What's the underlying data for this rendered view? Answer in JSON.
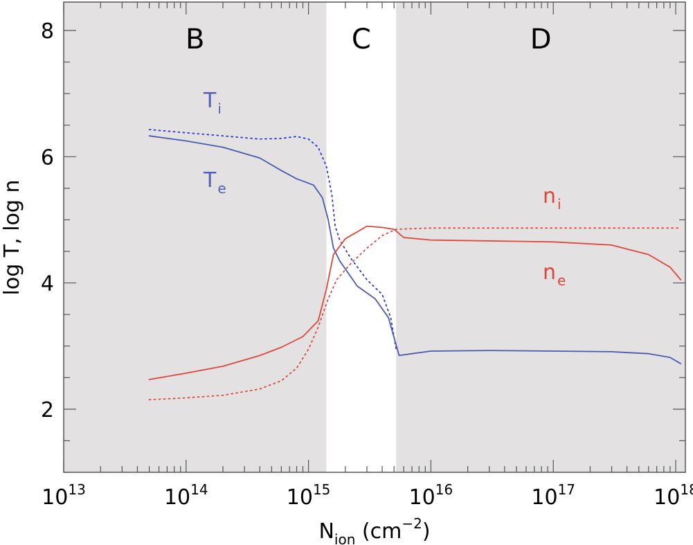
{
  "chart_data": {
    "type": "line",
    "title": "",
    "xlabel": {
      "main": "N",
      "sub": "ion",
      "rest": "  (cm",
      "sup": "−2",
      "close": ")"
    },
    "ylabel": "log T, log n",
    "x_scale": "log",
    "xlim": [
      10000000000000.0,
      1.2e+18
    ],
    "ylim": [
      1,
      8.45
    ],
    "x_ticks": [
      {
        "base": "10",
        "exp": "13",
        "value": 10000000000000.0
      },
      {
        "base": "10",
        "exp": "14",
        "value": 100000000000000.0
      },
      {
        "base": "10",
        "exp": "15",
        "value": 1000000000000000.0
      },
      {
        "base": "10",
        "exp": "16",
        "value": 1e+16
      },
      {
        "base": "10",
        "exp": "17",
        "value": 1e+17
      },
      {
        "base": "10",
        "exp": "18",
        "value": 1e+18
      }
    ],
    "y_ticks": [
      "2",
      "4",
      "6",
      "8"
    ],
    "regions": [
      {
        "label": "B",
        "x0": 10000000000000.0,
        "x1": 1400000000000000.0,
        "shaded": true
      },
      {
        "label": "C",
        "x0": 1400000000000000.0,
        "x1": 5200000000000000.0,
        "shaded": false
      },
      {
        "label": "D",
        "x0": 5200000000000000.0,
        "x1": 1.2e+18,
        "shaded": true
      }
    ],
    "series": [
      {
        "name": "Ti",
        "label_main": "T",
        "label_sub": "i",
        "color": "#2436d9",
        "style": "dotted",
        "points": [
          [
            50000000000000.0,
            6.43
          ],
          [
            100000000000000.0,
            6.38
          ],
          [
            200000000000000.0,
            6.33
          ],
          [
            400000000000000.0,
            6.28
          ],
          [
            600000000000000.0,
            6.29
          ],
          [
            800000000000000.0,
            6.32
          ],
          [
            1000000000000000.0,
            6.28
          ],
          [
            1200000000000000.0,
            6.15
          ],
          [
            1400000000000000.0,
            5.85
          ],
          [
            1550000000000000.0,
            5.4
          ],
          [
            1650000000000000.0,
            4.9
          ],
          [
            1800000000000000.0,
            4.68
          ],
          [
            2200000000000000.0,
            4.4
          ],
          [
            3000000000000000.0,
            4.05
          ],
          [
            4000000000000000.0,
            3.82
          ],
          [
            4700000000000000.0,
            3.45
          ],
          [
            5200000000000000.0,
            2.95
          ]
        ]
      },
      {
        "name": "Te",
        "label_main": "T",
        "label_sub": "e",
        "color": "#4a5ab0",
        "style": "solid",
        "points": [
          [
            50000000000000.0,
            6.33
          ],
          [
            100000000000000.0,
            6.25
          ],
          [
            200000000000000.0,
            6.15
          ],
          [
            400000000000000.0,
            5.98
          ],
          [
            600000000000000.0,
            5.78
          ],
          [
            800000000000000.0,
            5.65
          ],
          [
            1100000000000000.0,
            5.55
          ],
          [
            1300000000000000.0,
            5.35
          ],
          [
            1450000000000000.0,
            5.0
          ],
          [
            1600000000000000.0,
            4.55
          ],
          [
            1800000000000000.0,
            4.35
          ],
          [
            2500000000000000.0,
            3.95
          ],
          [
            3500000000000000.0,
            3.75
          ],
          [
            4500000000000000.0,
            3.45
          ],
          [
            5500000000000000.0,
            2.85
          ],
          [
            7000000000000000.0,
            2.88
          ],
          [
            1e+16,
            2.92
          ],
          [
            3e+16,
            2.93
          ],
          [
            1e+17,
            2.92
          ],
          [
            3e+17,
            2.91
          ],
          [
            6e+17,
            2.88
          ],
          [
            9e+17,
            2.82
          ],
          [
            1.1e+18,
            2.72
          ]
        ]
      },
      {
        "name": "ni",
        "label_main": "n",
        "label_sub": "i",
        "color": "#e0453a",
        "style": "dotted",
        "points": [
          [
            50000000000000.0,
            2.15
          ],
          [
            100000000000000.0,
            2.18
          ],
          [
            200000000000000.0,
            2.22
          ],
          [
            400000000000000.0,
            2.32
          ],
          [
            600000000000000.0,
            2.45
          ],
          [
            800000000000000.0,
            2.65
          ],
          [
            1000000000000000.0,
            2.95
          ],
          [
            1200000000000000.0,
            3.3
          ],
          [
            1450000000000000.0,
            3.75
          ],
          [
            1700000000000000.0,
            4.05
          ],
          [
            2200000000000000.0,
            4.3
          ],
          [
            3000000000000000.0,
            4.55
          ],
          [
            4000000000000000.0,
            4.75
          ],
          [
            5200000000000000.0,
            4.85
          ],
          [
            1e+16,
            4.87
          ],
          [
            1e+17,
            4.87
          ],
          [
            1.1e+18,
            4.87
          ]
        ]
      },
      {
        "name": "ne",
        "label_main": "n",
        "label_sub": "e",
        "color": "#e0453a",
        "style": "solid",
        "points": [
          [
            50000000000000.0,
            2.47
          ],
          [
            100000000000000.0,
            2.57
          ],
          [
            200000000000000.0,
            2.68
          ],
          [
            400000000000000.0,
            2.85
          ],
          [
            600000000000000.0,
            2.98
          ],
          [
            900000000000000.0,
            3.15
          ],
          [
            1200000000000000.0,
            3.4
          ],
          [
            1400000000000000.0,
            3.9
          ],
          [
            1600000000000000.0,
            4.45
          ],
          [
            2000000000000000.0,
            4.7
          ],
          [
            3000000000000000.0,
            4.9
          ],
          [
            4000000000000000.0,
            4.88
          ],
          [
            5000000000000000.0,
            4.85
          ],
          [
            6000000000000000.0,
            4.72
          ],
          [
            1e+16,
            4.68
          ],
          [
            1e+17,
            4.65
          ],
          [
            3e+17,
            4.6
          ],
          [
            6e+17,
            4.45
          ],
          [
            9e+17,
            4.25
          ],
          [
            1.1e+18,
            4.05
          ]
        ]
      }
    ],
    "colors": {
      "shade": "#e3e1e1",
      "frame": "#555555"
    }
  }
}
